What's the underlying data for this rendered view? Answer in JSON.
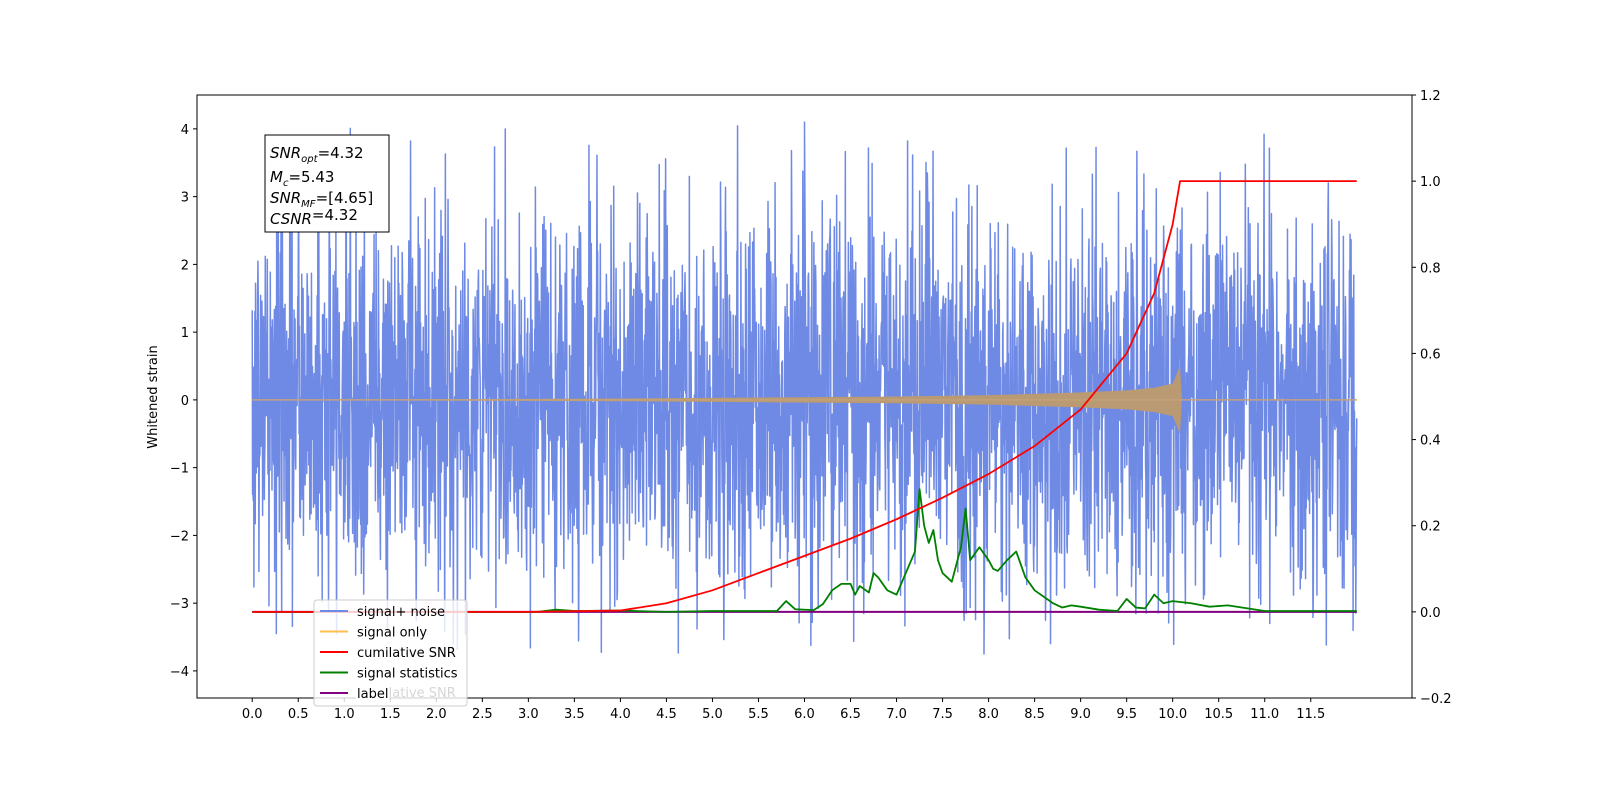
{
  "chart_data": {
    "type": "line",
    "ylabel": "Whitened strain",
    "xlabel": "",
    "x_ticks": [
      "0.0",
      "0.5",
      "1.0",
      "1.5",
      "2.0",
      "2.5",
      "3.0",
      "3.5",
      "4.0",
      "4.5",
      "5.0",
      "5.5",
      "6.0",
      "6.5",
      "7.0",
      "7.5",
      "8.0",
      "8.5",
      "9.0",
      "9.5",
      "10.0",
      "10.5",
      "11.0",
      "11.5"
    ],
    "xlim": [
      -0.6,
      12.6
    ],
    "ylim_left": [
      -4.4,
      4.5
    ],
    "ylim_right": [
      -0.2,
      1.2
    ],
    "y_ticks_left": [
      -4,
      -3,
      -2,
      -1,
      0,
      1,
      2,
      3,
      4
    ],
    "y_ticks_right": [
      -0.2,
      0.0,
      0.2,
      0.4,
      0.6,
      0.8,
      1.0,
      1.2
    ],
    "annotation": {
      "lines": [
        {
          "var": "SNR",
          "sub": "opt",
          "value": "=4.32"
        },
        {
          "var": "M",
          "sub": "c",
          "value": "=5.43"
        },
        {
          "var": "SNR",
          "sub": "MF",
          "value": "=[4.65]"
        },
        {
          "var": "CSNR",
          "sub": "",
          "value": "=4.32"
        }
      ]
    },
    "legend": {
      "placement": "lower-left",
      "entries": [
        {
          "label": "signal+ noise",
          "color": "#6f8ae5"
        },
        {
          "label": "signal only",
          "color": "#ffbf4f"
        },
        {
          "label": "cumilative SNR",
          "color": "#ff0000"
        },
        {
          "label": "signal statistics",
          "color": "#008000"
        },
        {
          "label": "label",
          "color": "#800080"
        }
      ],
      "overlapped_text": "cumilative SNR"
    },
    "series": [
      {
        "name": "signal+ noise",
        "axis": "left",
        "color": "#6f8ae5",
        "x_range": [
          0.0,
          12.0
        ],
        "typical_envelope": [
          -2.3,
          2.3
        ],
        "max": 4.1,
        "min": -3.75
      },
      {
        "name": "signal only",
        "axis": "left",
        "color": "#ffbf4f",
        "envelope_x": [
          0.0,
          2.0,
          4.0,
          6.0,
          7.0,
          8.0,
          8.5,
          9.0,
          9.5,
          9.8,
          10.0,
          10.08,
          10.1,
          12.0
        ],
        "envelope_amp": [
          0.0,
          0.01,
          0.02,
          0.04,
          0.05,
          0.07,
          0.09,
          0.11,
          0.14,
          0.18,
          0.24,
          0.5,
          0.0,
          0.0
        ]
      },
      {
        "name": "cumilative SNR",
        "axis": "right",
        "color": "#ff0000",
        "x": [
          0.0,
          3.0,
          4.0,
          4.5,
          5.0,
          5.5,
          6.0,
          6.5,
          7.0,
          7.5,
          8.0,
          8.5,
          9.0,
          9.5,
          9.8,
          10.0,
          10.08,
          12.0
        ],
        "values": [
          0.0,
          0.0,
          0.003,
          0.02,
          0.05,
          0.09,
          0.13,
          0.17,
          0.215,
          0.265,
          0.32,
          0.385,
          0.47,
          0.6,
          0.74,
          0.9,
          1.0,
          1.0
        ]
      },
      {
        "name": "signal statistics",
        "axis": "right",
        "color": "#008000",
        "x": [
          0.0,
          3.1,
          3.3,
          3.5,
          4.0,
          4.5,
          5.0,
          5.5,
          5.7,
          5.8,
          5.9,
          6.1,
          6.2,
          6.3,
          6.4,
          6.5,
          6.55,
          6.6,
          6.7,
          6.75,
          6.8,
          6.9,
          7.0,
          7.1,
          7.2,
          7.25,
          7.3,
          7.35,
          7.4,
          7.45,
          7.5,
          7.6,
          7.7,
          7.75,
          7.8,
          7.9,
          8.0,
          8.05,
          8.1,
          8.2,
          8.3,
          8.4,
          8.5,
          8.7,
          8.8,
          8.9,
          9.0,
          9.2,
          9.4,
          9.5,
          9.6,
          9.7,
          9.8,
          9.9,
          10.0,
          10.2,
          10.4,
          10.6,
          11.0,
          12.0
        ],
        "values": [
          0.0,
          0.0,
          0.005,
          0.002,
          0.003,
          0.0,
          0.002,
          0.002,
          0.002,
          0.025,
          0.006,
          0.004,
          0.018,
          0.05,
          0.065,
          0.065,
          0.04,
          0.06,
          0.045,
          0.09,
          0.08,
          0.05,
          0.04,
          0.09,
          0.14,
          0.285,
          0.2,
          0.16,
          0.19,
          0.12,
          0.09,
          0.07,
          0.15,
          0.24,
          0.12,
          0.15,
          0.12,
          0.1,
          0.095,
          0.12,
          0.14,
          0.08,
          0.05,
          0.02,
          0.01,
          0.015,
          0.012,
          0.005,
          0.002,
          0.03,
          0.01,
          0.008,
          0.04,
          0.02,
          0.025,
          0.02,
          0.012,
          0.015,
          0.002,
          0.002
        ]
      },
      {
        "name": "label",
        "axis": "right",
        "color": "#800080",
        "x": [
          0.0,
          12.0
        ],
        "values": [
          0.0,
          0.0
        ]
      }
    ],
    "grid": false
  }
}
